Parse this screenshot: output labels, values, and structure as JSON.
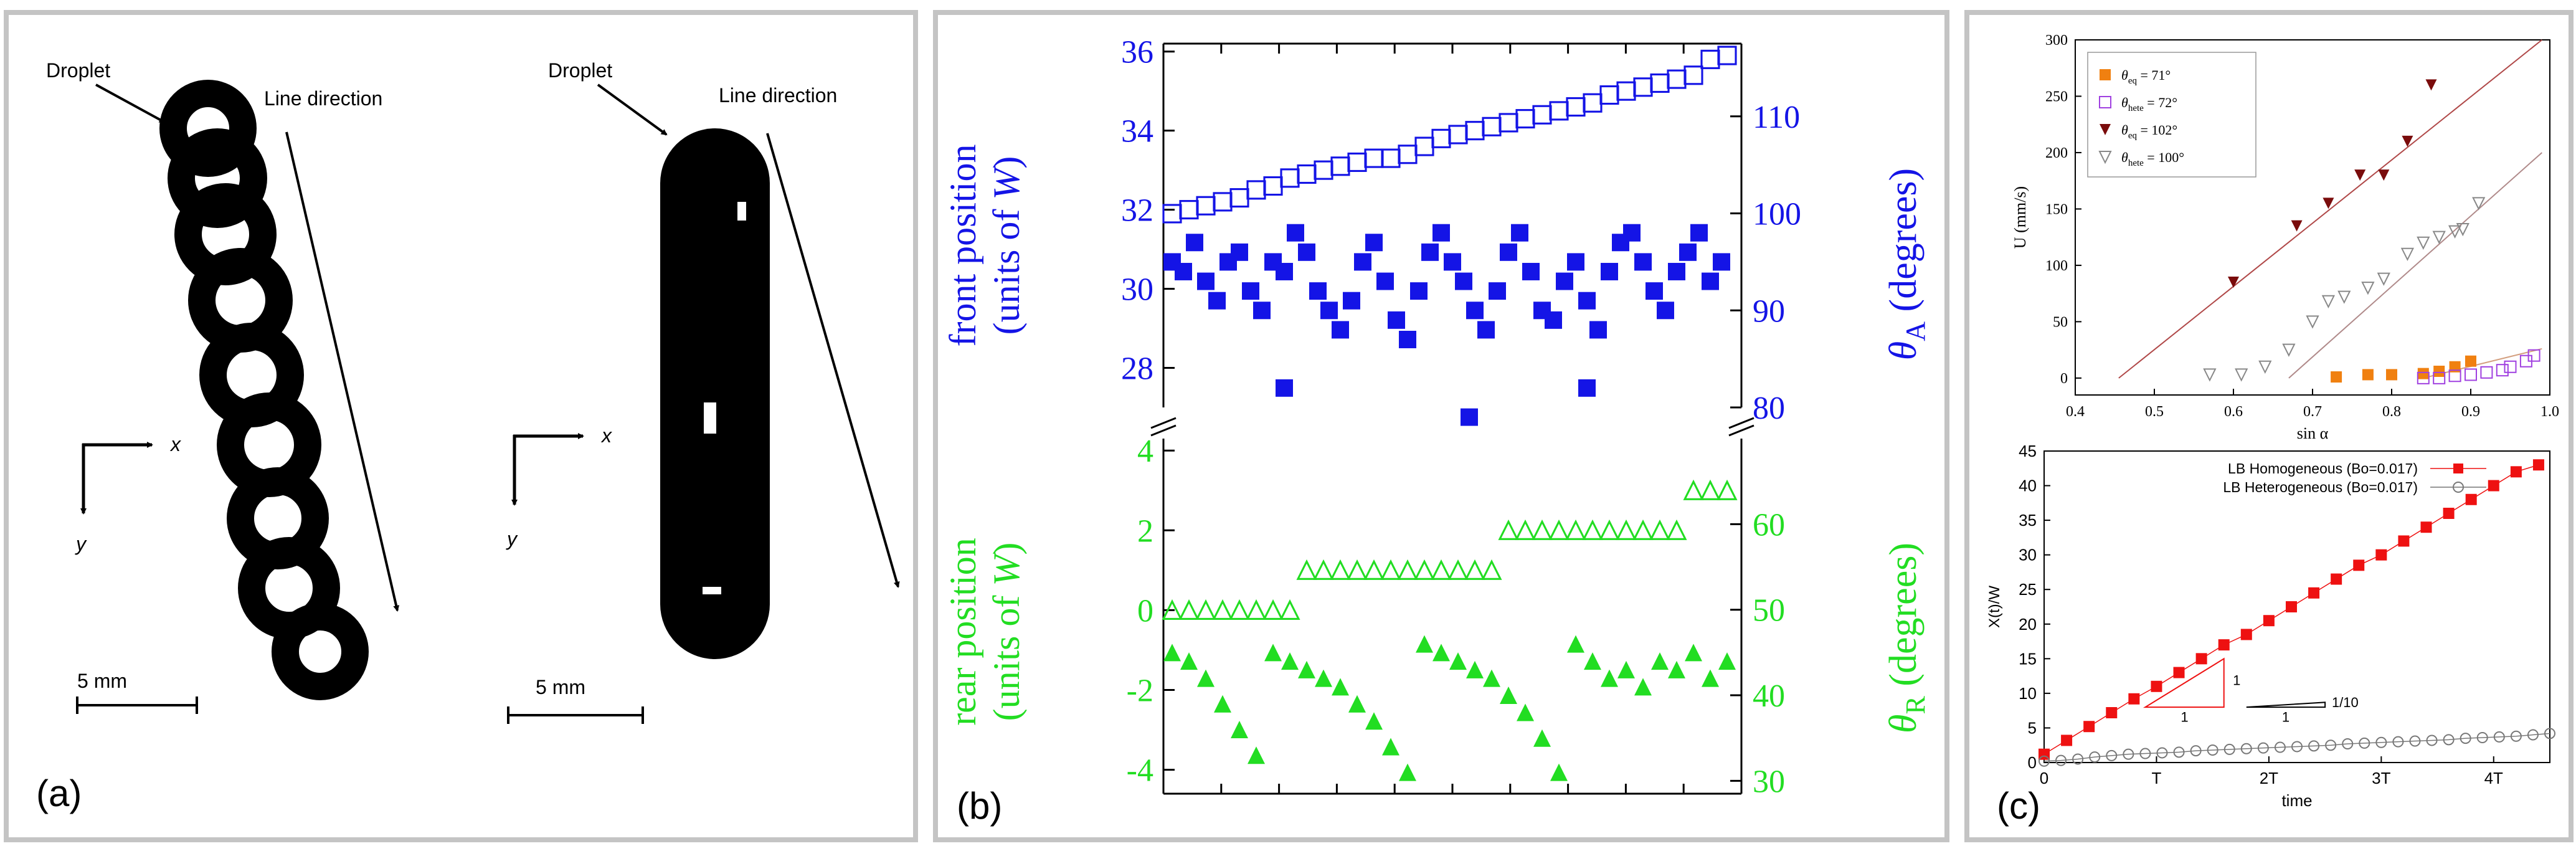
{
  "panel_a": {
    "label": "(a)",
    "left_image": {
      "droplet_label": "Droplet",
      "line_label": "Line direction",
      "x_axis": "x",
      "y_axis": "y",
      "scale": "5 mm"
    },
    "right_image": {
      "droplet_label": "Droplet",
      "line_label": "Line direction",
      "x_axis": "x",
      "y_axis": "y",
      "scale": "5  mm"
    }
  },
  "panel_b": {
    "label": "(b)",
    "top_left_label_1": "front position",
    "top_left_label_2_prefix": "(units of ",
    "top_left_label_2_var": "W",
    "top_left_label_2_suffix": ")",
    "top_right_label_var": "θ",
    "top_right_label_sub": "A",
    "top_right_label_suffix": " (degrees)",
    "bottom_left_label_1": "rear position",
    "bottom_left_label_2_prefix": "(units of ",
    "bottom_left_label_2_var": "W",
    "bottom_left_label_2_suffix": ")",
    "bottom_right_label_var": "θ",
    "bottom_right_label_sub": "R",
    "bottom_right_label_suffix": " (degrees)",
    "colors": {
      "top": "#1414e6",
      "bottom": "#22dd22"
    }
  },
  "panel_c": {
    "label": "(c)",
    "top_legend": [
      {
        "sym": "θ",
        "sub": "eq",
        "rest": " = 71°"
      },
      {
        "sym": "θ",
        "sub": "hete",
        "rest": " = 72°"
      },
      {
        "sym": "θ",
        "sub": "eq",
        "rest": " = 102°"
      },
      {
        "sym": "θ",
        "sub": "hete",
        "rest": " = 100°"
      }
    ],
    "bottom_legend": [
      "LB Homogeneous (Bo=0.017)",
      "LB Heterogeneous (Bo=0.017)"
    ],
    "slope_labels": {
      "steep_side": "1",
      "steep_base": "1",
      "shallow_side": "1/10",
      "shallow_base": "1"
    }
  },
  "chart_data": [
    {
      "type": "scatter",
      "id": "front",
      "xlim": [
        0,
        1
      ],
      "ylim": [
        27,
        36.2
      ],
      "yticks": [
        28,
        30,
        32,
        34,
        36
      ],
      "y2lim": [
        80,
        117.5
      ],
      "y2ticks": [
        80,
        90,
        100,
        110
      ],
      "series": [
        {
          "name": "front position",
          "marker": "open-square",
          "x": [
            0.0,
            0.03,
            0.06,
            0.09,
            0.12,
            0.15,
            0.18,
            0.21,
            0.24,
            0.27,
            0.3,
            0.33,
            0.36,
            0.39,
            0.42,
            0.45,
            0.48,
            0.51,
            0.54,
            0.57,
            0.6,
            0.63,
            0.66,
            0.69,
            0.72,
            0.75,
            0.78,
            0.81,
            0.84,
            0.87,
            0.9,
            0.93,
            0.96,
            0.99
          ],
          "y": [
            31.9,
            32.0,
            32.1,
            32.2,
            32.3,
            32.5,
            32.6,
            32.8,
            32.9,
            33.0,
            33.1,
            33.2,
            33.3,
            33.3,
            33.4,
            33.6,
            33.8,
            33.9,
            34.0,
            34.1,
            34.2,
            34.3,
            34.4,
            34.5,
            34.6,
            34.7,
            34.9,
            35.0,
            35.1,
            35.2,
            35.3,
            35.4,
            35.8,
            35.9
          ]
        },
        {
          "name": "θA",
          "marker": "filled-square",
          "axis": "right",
          "x": [
            0.0,
            0.02,
            0.04,
            0.06,
            0.08,
            0.1,
            0.12,
            0.14,
            0.16,
            0.18,
            0.2,
            0.22,
            0.24,
            0.26,
            0.28,
            0.3,
            0.32,
            0.34,
            0.36,
            0.38,
            0.4,
            0.42,
            0.44,
            0.46,
            0.48,
            0.5,
            0.52,
            0.54,
            0.56,
            0.58,
            0.6,
            0.62,
            0.64,
            0.66,
            0.68,
            0.7,
            0.72,
            0.74,
            0.76,
            0.78,
            0.8,
            0.82,
            0.84,
            0.86,
            0.88,
            0.9,
            0.92,
            0.94,
            0.96,
            0.98,
            0.2,
            0.53,
            0.74
          ],
          "y": [
            95,
            94,
            97,
            93,
            91,
            95,
            96,
            92,
            90,
            95,
            94,
            98,
            96,
            92,
            90,
            88,
            91,
            95,
            97,
            93,
            89,
            87,
            92,
            96,
            98,
            95,
            93,
            90,
            88,
            92,
            96,
            98,
            94,
            90,
            89,
            93,
            95,
            91,
            88,
            94,
            97,
            98,
            95,
            92,
            90,
            94,
            96,
            98,
            93,
            95,
            82,
            79,
            82
          ]
        }
      ]
    },
    {
      "type": "scatter",
      "id": "rear",
      "xlim": [
        0,
        1
      ],
      "ylim": [
        -4.6,
        4.3
      ],
      "yticks": [
        -4,
        -2,
        0,
        2,
        4
      ],
      "y2lim": [
        28.5,
        70
      ],
      "y2ticks": [
        30,
        40,
        50,
        60
      ],
      "series": [
        {
          "name": "rear position",
          "marker": "open-triangle",
          "x": [
            0.0,
            0.03,
            0.06,
            0.09,
            0.12,
            0.15,
            0.18,
            0.21,
            0.24,
            0.27,
            0.3,
            0.33,
            0.36,
            0.39,
            0.42,
            0.45,
            0.48,
            0.51,
            0.54,
            0.57,
            0.6,
            0.63,
            0.66,
            0.69,
            0.72,
            0.75,
            0.78,
            0.81,
            0.84,
            0.87,
            0.9,
            0.93,
            0.96,
            0.99
          ],
          "y": [
            0.0,
            0.0,
            0.0,
            0.0,
            0.0,
            0.0,
            0.0,
            0.0,
            1.0,
            1.0,
            1.0,
            1.0,
            1.0,
            1.0,
            1.0,
            1.0,
            1.0,
            1.0,
            1.0,
            1.0,
            2.0,
            2.0,
            2.0,
            2.0,
            2.0,
            2.0,
            2.0,
            2.0,
            2.0,
            2.0,
            2.0,
            3.0,
            3.0,
            3.0
          ]
        },
        {
          "name": "θR",
          "marker": "filled-triangle",
          "axis": "right",
          "x": [
            0.0,
            0.03,
            0.06,
            0.09,
            0.12,
            0.15,
            0.18,
            0.21,
            0.24,
            0.27,
            0.3,
            0.33,
            0.36,
            0.39,
            0.42,
            0.45,
            0.48,
            0.51,
            0.54,
            0.57,
            0.6,
            0.63,
            0.66,
            0.69,
            0.72,
            0.75,
            0.78,
            0.81,
            0.84,
            0.87,
            0.9,
            0.93,
            0.96,
            0.99
          ],
          "y": [
            45,
            44,
            42,
            39,
            36,
            33,
            45,
            44,
            43,
            42,
            41,
            39,
            37,
            34,
            31,
            46,
            45,
            44,
            43,
            42,
            40,
            38,
            35,
            31,
            46,
            44,
            42,
            43,
            41,
            44,
            43,
            45,
            42,
            44
          ]
        }
      ]
    },
    {
      "type": "scatter",
      "id": "velocity",
      "xlabel": "sin α",
      "ylabel": "U (mm/s)",
      "xlim": [
        0.4,
        1.0
      ],
      "ylim": [
        -15,
        300
      ],
      "xticks": [
        0.4,
        0.5,
        0.6,
        0.7,
        0.8,
        0.9,
        1.0
      ],
      "yticks": [
        0,
        50,
        100,
        150,
        200,
        250,
        300
      ],
      "series": [
        {
          "name": "θeq = 71°",
          "marker": "filled-square",
          "color": "#f08010",
          "x": [
            0.73,
            0.77,
            0.8,
            0.84,
            0.86,
            0.88,
            0.9
          ],
          "y": [
            1,
            3,
            3,
            4,
            6,
            10,
            15
          ]
        },
        {
          "name": "θhete = 72°",
          "marker": "open-square",
          "color": "#a040e0",
          "x": [
            0.84,
            0.86,
            0.88,
            0.9,
            0.92,
            0.94,
            0.95,
            0.97,
            0.98
          ],
          "y": [
            0,
            0,
            2,
            3,
            5,
            7,
            10,
            15,
            20
          ]
        },
        {
          "name": "θeq = 102°",
          "marker": "filled-down-triangle",
          "color": "#7a0c0c",
          "x": [
            0.6,
            0.68,
            0.72,
            0.76,
            0.79,
            0.82,
            0.85
          ],
          "y": [
            85,
            135,
            155,
            180,
            180,
            210,
            260
          ]
        },
        {
          "name": "θhete = 100°",
          "marker": "open-down-triangle",
          "color": "#888888",
          "x": [
            0.57,
            0.61,
            0.64,
            0.67,
            0.7,
            0.72,
            0.74,
            0.77,
            0.79,
            0.82,
            0.84,
            0.86,
            0.88,
            0.89,
            0.91
          ],
          "y": [
            3,
            3,
            10,
            25,
            50,
            68,
            72,
            80,
            88,
            110,
            120,
            125,
            130,
            132,
            155
          ]
        }
      ],
      "fit_lines": [
        {
          "x": [
            0.455,
            0.99
          ],
          "y": [
            0,
            300
          ],
          "color": "#b04848"
        },
        {
          "x": [
            0.67,
            0.99
          ],
          "y": [
            0,
            200
          ],
          "color": "#b08a8a"
        },
        {
          "x": [
            0.84,
            0.99
          ],
          "y": [
            0,
            26
          ],
          "color": "#d4a080"
        }
      ]
    },
    {
      "type": "line",
      "id": "position",
      "xlabel": "time",
      "ylabel": "X(t)/W",
      "xlim": [
        0,
        4.5
      ],
      "ylim": [
        0,
        45
      ],
      "xticks": [
        0,
        1,
        2,
        3,
        4
      ],
      "xtick_labels": [
        "0",
        "T",
        "2T",
        "3T",
        "4T"
      ],
      "yticks": [
        0,
        5,
        10,
        15,
        20,
        25,
        30,
        35,
        40,
        45
      ],
      "series": [
        {
          "name": "LB Homogeneous (Bo=0.017)",
          "marker": "filled-square",
          "color": "#ee1111",
          "x": [
            0.0,
            0.2,
            0.4,
            0.6,
            0.8,
            1.0,
            1.2,
            1.4,
            1.6,
            1.8,
            2.0,
            2.2,
            2.4,
            2.6,
            2.8,
            3.0,
            3.2,
            3.4,
            3.6,
            3.8,
            4.0,
            4.2,
            4.4
          ],
          "y": [
            1.2,
            3.2,
            5.2,
            7.2,
            9.2,
            11.0,
            13.0,
            15.0,
            17.0,
            18.5,
            20.5,
            22.5,
            24.5,
            26.5,
            28.5,
            30.0,
            32.0,
            34.0,
            36.0,
            38.0,
            40.0,
            42.0,
            43.0
          ]
        },
        {
          "name": "LB Heterogeneous (Bo=0.017)",
          "marker": "open-circle",
          "color": "#777777",
          "x": [
            0.0,
            0.15,
            0.3,
            0.45,
            0.6,
            0.75,
            0.9,
            1.05,
            1.2,
            1.35,
            1.5,
            1.65,
            1.8,
            1.95,
            2.1,
            2.25,
            2.4,
            2.55,
            2.7,
            2.85,
            3.0,
            3.15,
            3.3,
            3.45,
            3.6,
            3.75,
            3.9,
            4.05,
            4.2,
            4.35,
            4.5
          ],
          "y": [
            0.2,
            0.3,
            0.5,
            0.8,
            1.0,
            1.2,
            1.3,
            1.4,
            1.5,
            1.7,
            1.8,
            1.9,
            2.0,
            2.1,
            2.2,
            2.3,
            2.4,
            2.5,
            2.7,
            2.8,
            2.9,
            3.0,
            3.1,
            3.2,
            3.3,
            3.5,
            3.6,
            3.7,
            3.8,
            4.0,
            4.2
          ]
        }
      ]
    }
  ]
}
